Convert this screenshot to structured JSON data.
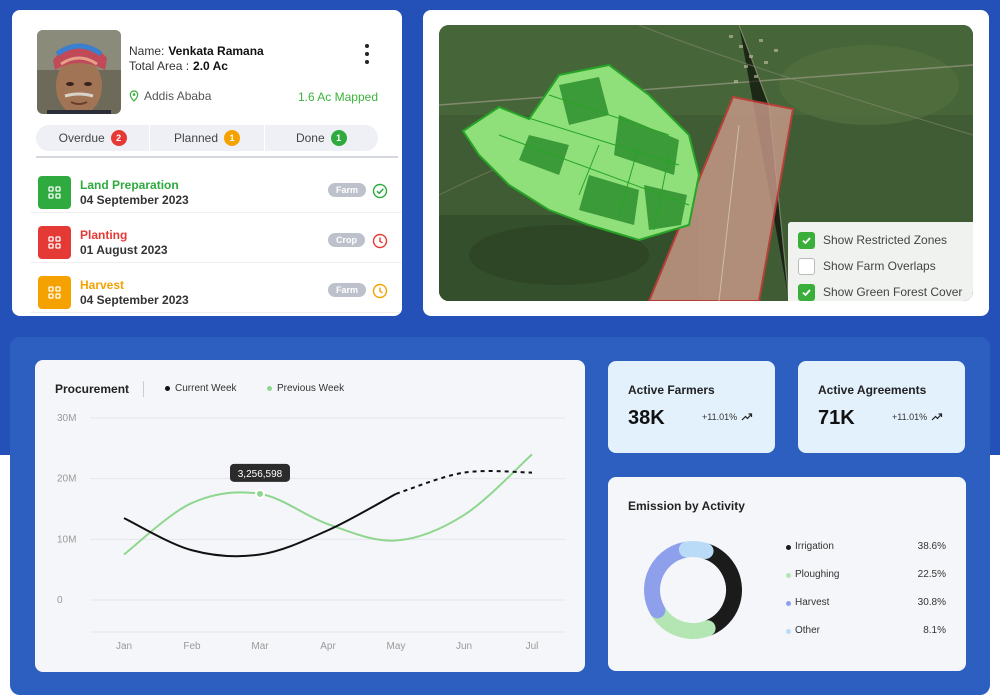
{
  "farmer": {
    "name_label": "Name:",
    "name": "Venkata Ramana",
    "area_label": "Total Area :",
    "area": "2.0 Ac",
    "location": "Addis Ababa",
    "mapped": "1.6 Ac Mapped",
    "tabs": [
      {
        "label": "Overdue",
        "count": "2",
        "color": "#e53935"
      },
      {
        "label": "Planned",
        "count": "1",
        "color": "#f5a100"
      },
      {
        "label": "Done",
        "count": "1",
        "color": "#2eaa3f"
      }
    ],
    "tasks": [
      {
        "title": "Land Preparation",
        "date": "04 September 2023",
        "tag": "Farm",
        "color": "#2eaa3f",
        "status": "check-circle-icon"
      },
      {
        "title": "Planting",
        "date": "01 August 2023",
        "tag": "Crop",
        "color": "#e53935",
        "status": "clock-icon"
      },
      {
        "title": "Harvest",
        "date": "04 September 2023",
        "tag": "Farm",
        "color": "#f5a100",
        "status": "clock-icon"
      }
    ]
  },
  "map": {
    "layers": [
      {
        "label": "Show Restricted Zones",
        "checked": true
      },
      {
        "label": "Show Farm Overlaps",
        "checked": false
      },
      {
        "label": "Show Green Forest Cover",
        "checked": true
      }
    ]
  },
  "procurement": {
    "title": "Procurement",
    "tooltip": "3,256,598",
    "legend": [
      {
        "label": "Current Week",
        "color": "#111111"
      },
      {
        "label": "Previous Week",
        "color": "#8fd68f"
      }
    ]
  },
  "chart_data": {
    "type": "line",
    "title": "Procurement",
    "x": [
      "Jan",
      "Feb",
      "Mar",
      "Apr",
      "May",
      "Jun",
      "Jul"
    ],
    "y_ticks": [
      "0",
      "10M",
      "20M",
      "30M"
    ],
    "ylim": [
      0,
      30
    ],
    "y_unit": "M",
    "series": [
      {
        "name": "Current Week",
        "values": [
          13.5,
          8.2,
          7.5,
          11.5,
          17.5,
          21,
          21
        ]
      },
      {
        "name": "Previous Week",
        "values": [
          7.5,
          16,
          17.5,
          12.5,
          9.8,
          14,
          24
        ]
      }
    ],
    "grid": true,
    "legend": "top"
  },
  "stats": [
    {
      "label": "Active Farmers",
      "value": "38K",
      "change": "+11.01%"
    },
    {
      "label": "Active Agreements",
      "value": "71K",
      "change": "+11.01%"
    }
  ],
  "emission": {
    "title": "Emission by Activity",
    "items": [
      {
        "label": "Irrigation",
        "value": 38.6,
        "pct": "38.6%",
        "color": "#1b1b1b"
      },
      {
        "label": "Ploughing",
        "value": 22.5,
        "pct": "22.5%",
        "color": "#b4e6b4"
      },
      {
        "label": "Harvest",
        "value": 30.8,
        "pct": "30.8%",
        "color": "#8ea0ec"
      },
      {
        "label": "Other",
        "value": 8.1,
        "pct": "8.1%",
        "color": "#b9dbf8"
      }
    ]
  }
}
